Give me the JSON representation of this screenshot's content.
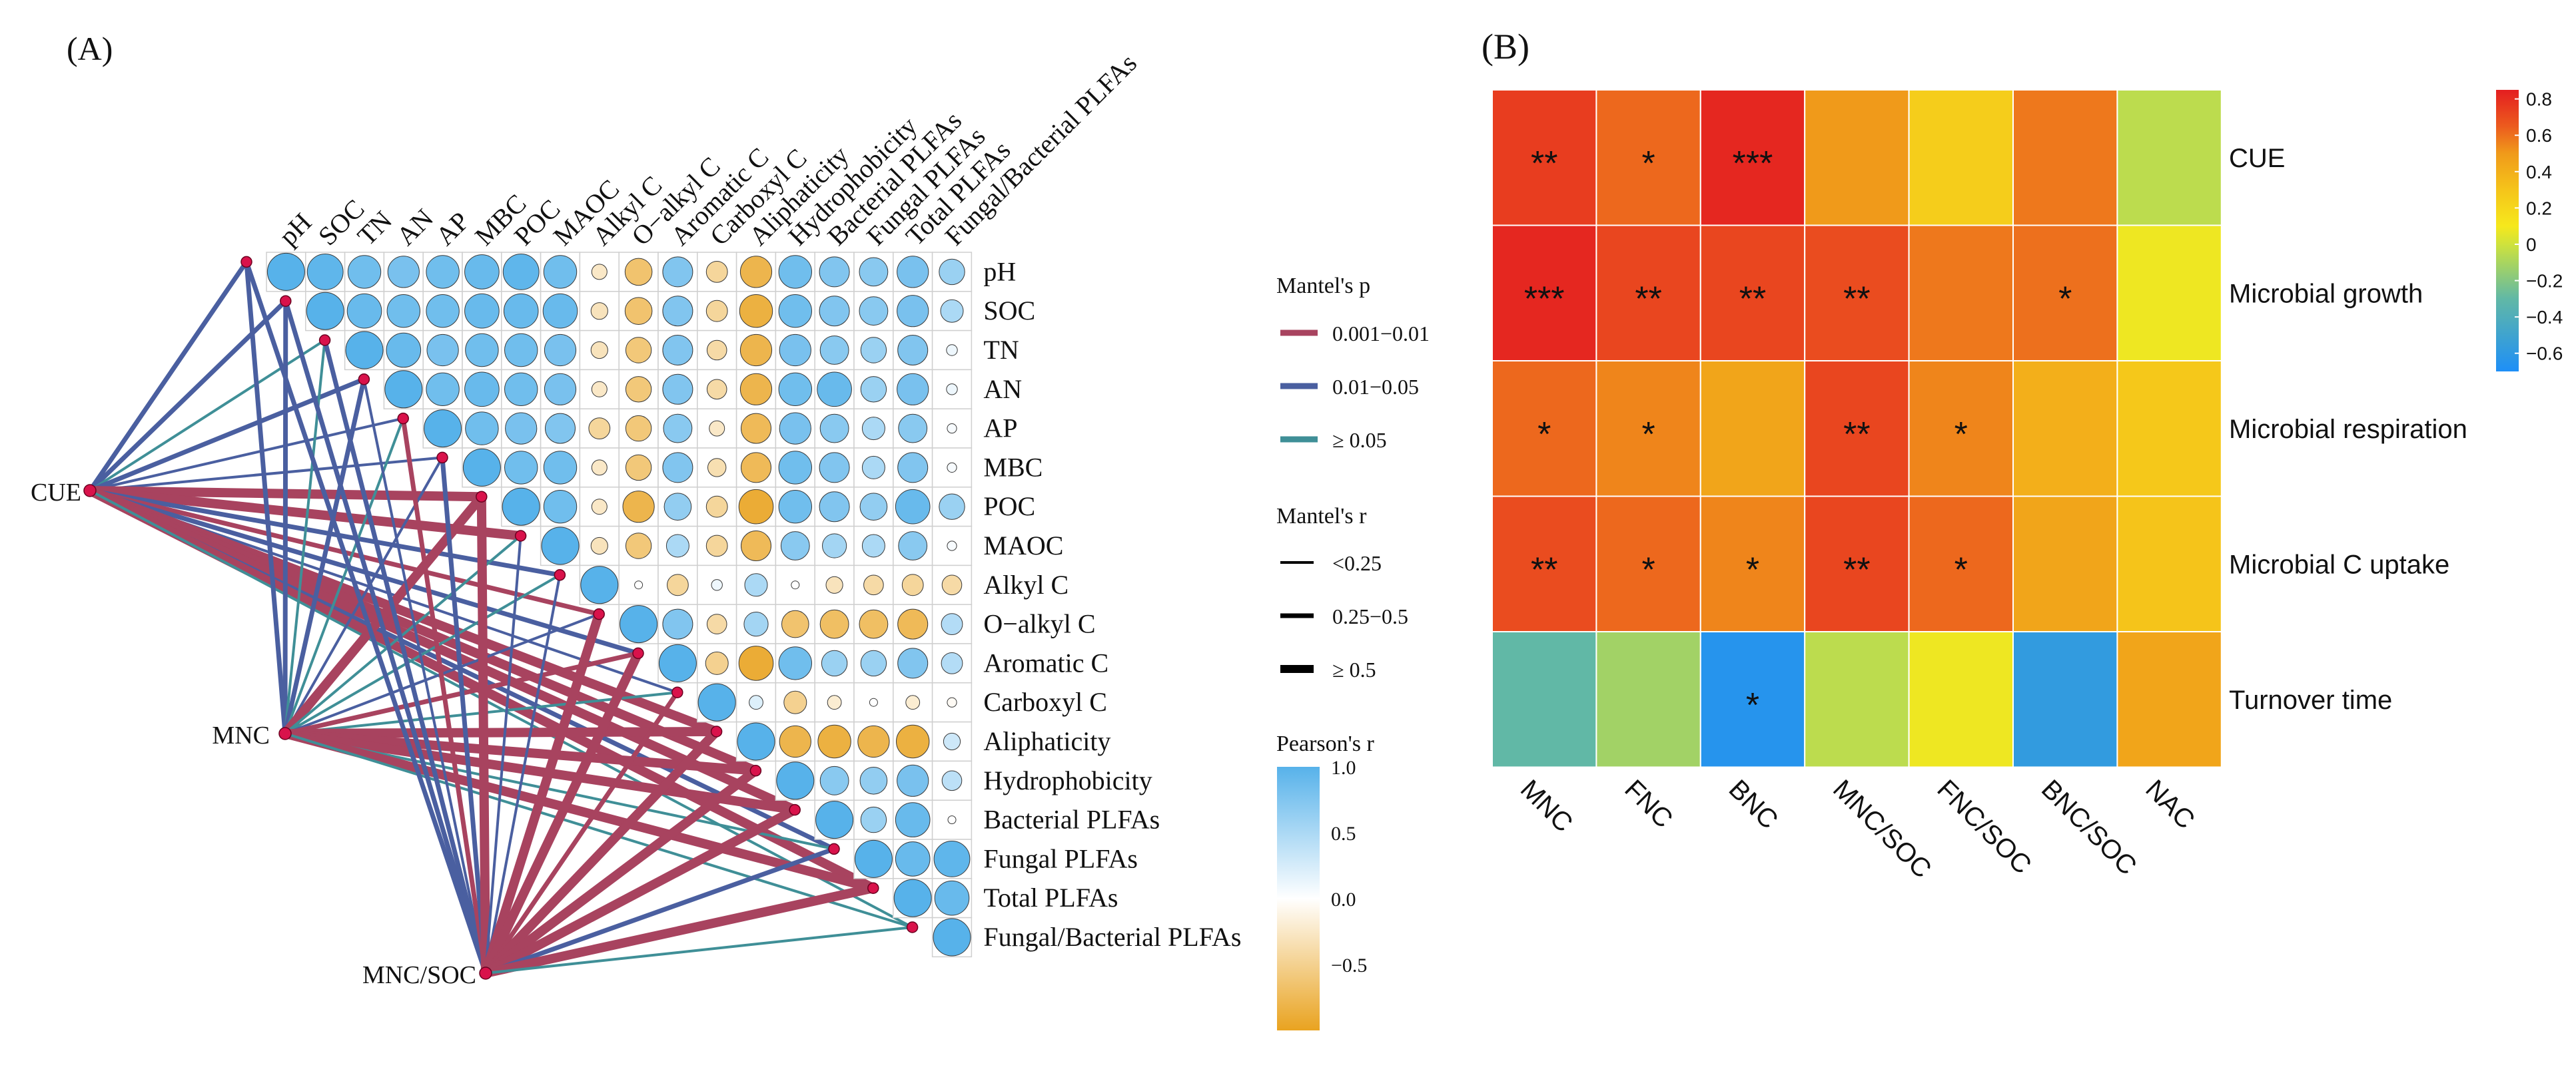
{
  "panel_a_label": "(A)",
  "panel_b_label": "(B)",
  "chart_data": [
    {
      "type": "heatmap",
      "subtype": "mantel-correlation-triangle",
      "variables": [
        "pH",
        "SOC",
        "TN",
        "AN",
        "AP",
        "MBC",
        "POC",
        "MAOC",
        "Alkyl C",
        "O−alkyl C",
        "Aromatic C",
        "Carboxyl C",
        "Aliphaticity",
        "Hydrophobicity",
        "Bacterial PLFAs",
        "Fungal PLFAs",
        "Total PLFAs",
        "Fungal/Bacterial PLFAs"
      ],
      "correlations": [
        [
          1.0,
          0.95,
          0.85,
          0.8,
          0.85,
          0.9,
          0.95,
          0.85,
          -0.25,
          -0.65,
          0.75,
          -0.45,
          -0.8,
          0.85,
          0.75,
          0.7,
          0.8,
          0.6
        ],
        [
          1.0,
          0.9,
          0.85,
          0.85,
          0.9,
          0.9,
          0.9,
          -0.3,
          -0.65,
          0.75,
          -0.45,
          -0.85,
          0.85,
          0.75,
          0.7,
          0.8,
          0.5
        ],
        [
          1.0,
          0.9,
          0.8,
          0.85,
          0.85,
          0.8,
          -0.3,
          -0.6,
          0.75,
          -0.4,
          -0.8,
          0.8,
          0.7,
          0.6,
          0.75,
          0.1
        ],
        [
          1.0,
          0.85,
          0.9,
          0.85,
          0.8,
          -0.25,
          -0.6,
          0.75,
          -0.4,
          -0.8,
          0.85,
          0.9,
          0.6,
          0.8,
          0.1
        ],
        [
          1.0,
          0.85,
          0.8,
          0.75,
          -0.45,
          -0.6,
          0.7,
          -0.25,
          -0.75,
          0.8,
          0.7,
          0.5,
          0.7,
          0.05
        ],
        [
          1.0,
          0.85,
          0.85,
          -0.25,
          -0.6,
          0.75,
          -0.35,
          -0.75,
          0.85,
          0.75,
          0.5,
          0.75,
          0.05
        ],
        [
          1.0,
          0.85,
          -0.25,
          -0.8,
          0.65,
          -0.45,
          -0.9,
          0.85,
          0.75,
          0.65,
          0.9,
          0.6
        ],
        [
          1.0,
          -0.3,
          -0.6,
          0.5,
          -0.45,
          -0.75,
          0.7,
          0.55,
          0.5,
          0.7,
          0.05
        ],
        [
          1.0,
          0.0,
          -0.45,
          0.1,
          0.5,
          0.0,
          -0.3,
          -0.4,
          -0.45,
          -0.4
        ],
        [
          1.0,
          0.75,
          -0.4,
          0.55,
          -0.65,
          -0.7,
          -0.7,
          -0.75,
          0.45
        ],
        [
          1.0,
          -0.5,
          -0.9,
          0.85,
          0.6,
          0.6,
          0.75,
          0.45
        ],
        [
          1.0,
          0.2,
          -0.5,
          -0.2,
          0.0,
          -0.2,
          -0.05
        ],
        [
          1.0,
          -0.8,
          -0.85,
          -0.8,
          -0.85,
          0.3
        ],
        [
          1.0,
          0.7,
          0.65,
          0.8,
          0.4
        ],
        [
          1.0,
          0.6,
          0.9,
          0.0
        ],
        [
          1.0,
          0.9,
          0.95
        ],
        [
          1.0,
          0.9
        ],
        [
          1.0
        ]
      ],
      "groups": [
        "CUE",
        "MNC",
        "MNC/SOC"
      ],
      "mantel_links": [
        {
          "from": "CUE",
          "to": [
            {
              "p": "0.01−0.05",
              "r": "0.25−0.5"
            },
            {
              "p": "0.01−0.05",
              "r": "0.25−0.5"
            },
            {
              "p": "≥ 0.05",
              "r": "<0.25"
            },
            {
              "p": "0.01−0.05",
              "r": "0.25−0.5"
            },
            {
              "p": "0.01−0.05",
              "r": "<0.25"
            },
            {
              "p": "0.01−0.05",
              "r": "<0.25"
            },
            {
              "p": "0.001−0.01",
              "r": "≥ 0.5"
            },
            {
              "p": "0.001−0.01",
              "r": "≥ 0.5"
            },
            {
              "p": "0.01−0.05",
              "r": "0.25−0.5"
            },
            {
              "p": "0.001−0.01",
              "r": "0.25−0.5"
            },
            {
              "p": "0.01−0.05",
              "r": "0.25−0.5"
            },
            {
              "p": "0.01−0.05",
              "r": "<0.25"
            },
            {
              "p": "0.001−0.01",
              "r": "≥ 0.5"
            },
            {
              "p": "0.001−0.01",
              "r": "≥ 0.5"
            },
            {
              "p": "0.001−0.01",
              "r": "≥ 0.5"
            },
            {
              "p": "0.01−0.05",
              "r": "0.25−0.5"
            },
            {
              "p": "0.001−0.01",
              "r": "≥ 0.5"
            },
            {
              "p": "≥ 0.05",
              "r": "<0.25"
            }
          ]
        },
        {
          "from": "MNC",
          "to": [
            {
              "p": "0.01−0.05",
              "r": "0.25−0.5"
            },
            {
              "p": "0.01−0.05",
              "r": "0.25−0.5"
            },
            {
              "p": "≥ 0.05",
              "r": "<0.25"
            },
            {
              "p": "0.01−0.05",
              "r": "0.25−0.5"
            },
            {
              "p": "≥ 0.05",
              "r": "<0.25"
            },
            {
              "p": "0.01−0.05",
              "r": "<0.25"
            },
            {
              "p": "0.001−0.01",
              "r": "≥ 0.5"
            },
            {
              "p": "≥ 0.05",
              "r": "<0.25"
            },
            {
              "p": "≥ 0.05",
              "r": "<0.25"
            },
            {
              "p": "0.01−0.05",
              "r": "<0.25"
            },
            {
              "p": "0.001−0.01",
              "r": "0.25−0.5"
            },
            {
              "p": "≥ 0.05",
              "r": "<0.25"
            },
            {
              "p": "0.001−0.01",
              "r": "≥ 0.5"
            },
            {
              "p": "0.001−0.01",
              "r": "≥ 0.5"
            },
            {
              "p": "0.001−0.01",
              "r": "≥ 0.5"
            },
            {
              "p": "≥ 0.05",
              "r": "<0.25"
            },
            {
              "p": "0.001−0.01",
              "r": "≥ 0.5"
            },
            {
              "p": "≥ 0.05",
              "r": "<0.25"
            }
          ]
        },
        {
          "from": "MNC/SOC",
          "to": [
            {
              "p": "0.01−0.05",
              "r": "0.25−0.5"
            },
            {
              "p": "0.01−0.05",
              "r": "0.25−0.5"
            },
            {
              "p": "0.01−0.05",
              "r": "0.25−0.5"
            },
            {
              "p": "0.01−0.05",
              "r": "<0.25"
            },
            {
              "p": "0.001−0.01",
              "r": "0.25−0.5"
            },
            {
              "p": "0.01−0.05",
              "r": "0.25−0.5"
            },
            {
              "p": "0.001−0.01",
              "r": "≥ 0.5"
            },
            {
              "p": "0.01−0.05",
              "r": "<0.25"
            },
            {
              "p": "0.01−0.05",
              "r": "<0.25"
            },
            {
              "p": "0.001−0.01",
              "r": "≥ 0.5"
            },
            {
              "p": "0.001−0.01",
              "r": "≥ 0.5"
            },
            {
              "p": "0.001−0.01",
              "r": "0.25−0.5"
            },
            {
              "p": "0.001−0.01",
              "r": "≥ 0.5"
            },
            {
              "p": "0.001−0.01",
              "r": "≥ 0.5"
            },
            {
              "p": "0.001−0.01",
              "r": "≥ 0.5"
            },
            {
              "p": "0.01−0.05",
              "r": "0.25−0.5"
            },
            {
              "p": "0.001−0.01",
              "r": "≥ 0.5"
            },
            {
              "p": "≥ 0.05",
              "r": "<0.25"
            }
          ]
        }
      ],
      "legend": {
        "mantel_p_title": "Mantel's p",
        "mantel_p": [
          {
            "label": "0.001−0.01",
            "color": "#A8435F"
          },
          {
            "label": "0.01−0.05",
            "color": "#4A5FA0"
          },
          {
            "label": "≥ 0.05",
            "color": "#3F8F97"
          }
        ],
        "mantel_r_title": "Mantel's r",
        "mantel_r": [
          {
            "label": "<0.25",
            "weight": 1
          },
          {
            "label": "0.25−0.5",
            "weight": 2
          },
          {
            "label": "≥ 0.5",
            "weight": 3
          }
        ],
        "pearson_title": "Pearson's r",
        "pearson_ticks": [
          "1.0",
          "0.5",
          "0.0",
          "−0.5"
        ],
        "pearson_range": [
          -1,
          1
        ]
      },
      "colors": {
        "positive": "#57B2EA",
        "negative": "#E9A320",
        "neutral": "#FFFFFF",
        "node": "#D9124B"
      }
    },
    {
      "type": "heatmap",
      "rows": [
        "CUE",
        "Microbial growth",
        "Microbial respiration",
        "Microbial C uptake",
        "Turnover time"
      ],
      "columns": [
        "MNC",
        "FNC",
        "BNC",
        "MNC/SOC",
        "FNC/SOC",
        "BNC/SOC",
        "NAC"
      ],
      "values": [
        [
          0.75,
          0.62,
          0.82,
          0.5,
          0.25,
          0.58,
          -0.05
        ],
        [
          0.82,
          0.72,
          0.72,
          0.7,
          0.58,
          0.6,
          0.08
        ],
        [
          0.62,
          0.55,
          0.45,
          0.72,
          0.55,
          0.4,
          0.28
        ],
        [
          0.7,
          0.62,
          0.55,
          0.72,
          0.62,
          0.45,
          0.3
        ],
        [
          -0.3,
          -0.12,
          -0.65,
          -0.05,
          0.08,
          -0.58,
          0.45
        ]
      ],
      "significance": [
        [
          "**",
          "*",
          "***",
          "",
          "",
          "",
          ""
        ],
        [
          "***",
          "**",
          "**",
          "**",
          "",
          "*",
          ""
        ],
        [
          "*",
          "*",
          "",
          "**",
          "*",
          "",
          ""
        ],
        [
          "**",
          "*",
          "*",
          "**",
          "*",
          "",
          ""
        ],
        [
          "",
          "",
          "*",
          "",
          "",
          "",
          ""
        ]
      ],
      "colorbar": {
        "ticks": [
          "0.8",
          "0.6",
          "0.4",
          "0.2",
          "0",
          "−0.2",
          "−0.4",
          "−0.6"
        ],
        "range": [
          -0.7,
          0.85
        ]
      }
    }
  ]
}
